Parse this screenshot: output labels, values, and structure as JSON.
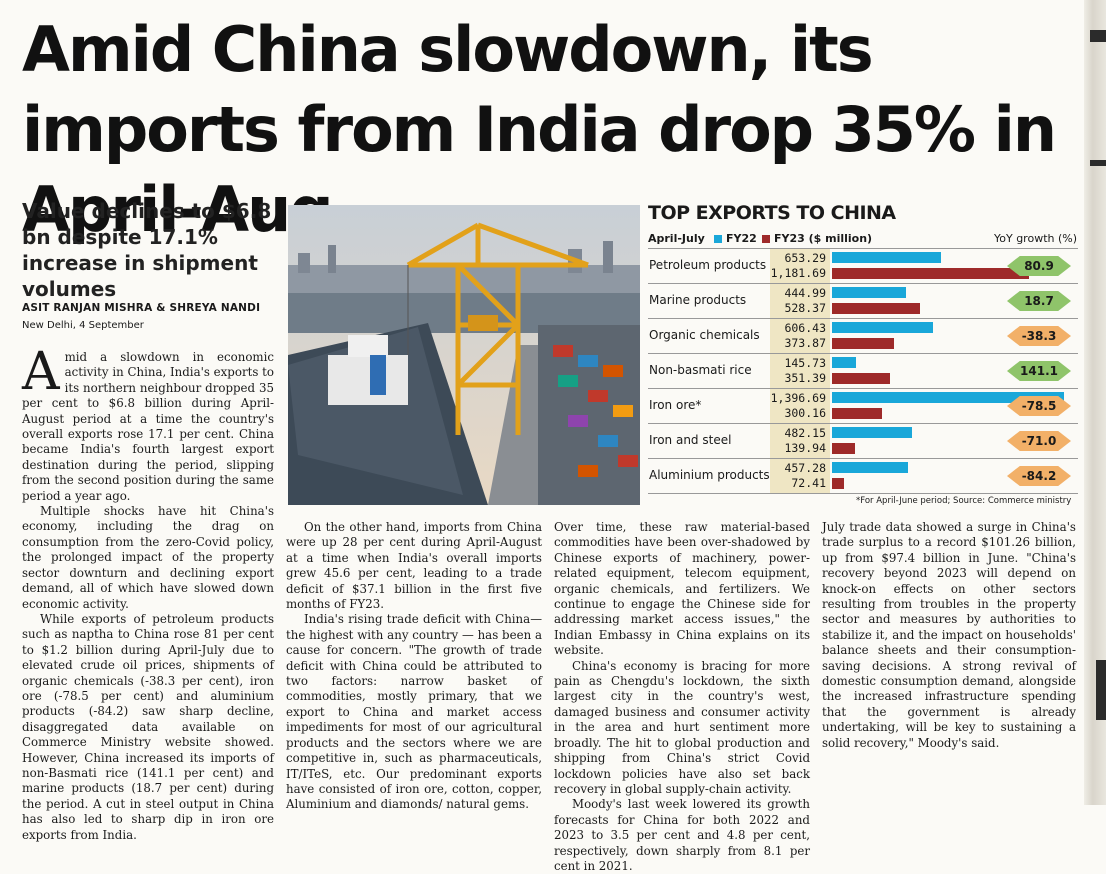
{
  "headline": "Amid China slowdown, its imports from India drop 35% in April-Aug",
  "deck": "Value declines to $6.8 bn despite 17.1% increase in shipment volumes",
  "byline": "ASIT RANJAN MISHRA & SHREYA NANDI",
  "dateline": "New Delhi, 4 September",
  "body": {
    "dropcap": "A",
    "p1": "mid a slowdown in economic activity in China, India's exports to its northern neighbour dropped 35 per cent to $6.8 billion during April-August period at a time the country's overall exports rose 17.1 per cent. China became India's fourth largest export destination during the period, slipping from the second position during the same period a year ago.",
    "p2": "Multiple shocks have hit China's economy, including the drag on consumption from the zero-Covid policy, the prolonged impact of the property sector downturn and declining export demand, all of which have slowed down economic activity.",
    "p3": "While exports of petroleum products such as naptha to China rose 81 per cent to $1.2 billion during April-July due to elevated crude oil prices, shipments of organic chemicals (-38.3 per cent), iron ore (-78.5 per cent) and aluminium products (-84.2) saw sharp decline, disaggregated data available on Commerce Ministry website showed. However, China increased its imports of non-Basmati rice (141.1 per cent) and marine products (18.7 per cent) during the period. A cut in steel output in China has also led to sharp dip in iron ore exports from India.",
    "p4": "On the other hand, imports from China were up 28 per cent during April-August at a time when India's overall imports grew 45.6 per cent, leading to a trade deficit of $37.1 billion in the first five months of FY23.",
    "p5": "India's rising trade deficit with China—the highest with any country — has been a cause for concern. \"The growth of trade deficit with China could be attributed to two factors: narrow basket of commodities, mostly primary, that we export to China and market access impediments for most of our agricultural products and the sectors where we are competitive in, such as pharmaceuticals, IT/ITeS, etc. Our predominant exports have consisted of iron ore, cotton, copper, Aluminium and diamonds/ natural gems.",
    "p6": "Over time, these raw material-based commodities have been over-shadowed by Chinese exports of machinery, power-related equipment, telecom equipment, organic chemicals, and fertilizers. We continue to engage the Chinese side for addressing market access issues,\" the Indian Embassy in China explains on its website.",
    "p7": "China's economy is bracing for more pain as Chengdu's lockdown, the sixth largest city in the country's west, damaged business and consumer activity in the area and hurt sentiment more broadly. The hit to global production and shipping from China's strict Covid lockdown policies have also set back recovery in global supply-chain activity.",
    "p8": "Moody's last week lowered its growth forecasts for China for both 2022 and 2023 to 3.5 per cent and 4.8 per cent, respectively, down sharply from 8.1 per cent in 2021.",
    "p9": "July trade data showed a surge in China's trade surplus to a record $101.26 billion, up from $97.4 billion in June. \"China's recovery beyond 2023 will depend on knock-on effects on other sectors resulting from troubles in the property sector and measures by authorities to stabilize it, and the impact on households' balance sheets and their consumption-saving decisions. A strong revival of domestic consumption demand, alongside the increased infrastructure spending that the government is already undertaking, will be key to sustaining a solid recovery,\" Moody's said."
  },
  "chart_data": {
    "type": "bar",
    "title": "TOP EXPORTS TO CHINA",
    "period_label": "April-July",
    "legend": [
      "FY22",
      "FY23 ($ million)"
    ],
    "yoy_label": "YoY growth (%)",
    "colors": {
      "FY22": "#1aa7d9",
      "FY23": "#9e2a2a"
    },
    "categories": [
      "Petroleum products",
      "Marine products",
      "Organic chemicals",
      "Non-basmati rice",
      "Iron ore*",
      "Iron and steel",
      "Aluminium products"
    ],
    "series": [
      {
        "name": "FY22",
        "values": [
          653.29,
          444.99,
          606.43,
          145.73,
          1396.69,
          482.15,
          457.28
        ]
      },
      {
        "name": "FY23 ($ million)",
        "values": [
          1181.69,
          528.37,
          373.87,
          351.39,
          300.16,
          139.94,
          72.41
        ]
      }
    ],
    "yoy": [
      "80.9",
      "18.7",
      "-38.3",
      "141.1",
      "-78.5",
      "-71.0",
      "-84.2"
    ],
    "value_labels_fy22": [
      "653.29",
      "444.99",
      "606.43",
      "145.73",
      "1,396.69",
      "482.15",
      "457.28"
    ],
    "value_labels_fy23": [
      "1,181.69",
      "528.37",
      "373.87",
      "351.39",
      "300.16",
      "139.94",
      "72.41"
    ],
    "xlim": [
      0,
      1400
    ],
    "footnote": "*For April-June period; Source: Commerce ministry"
  }
}
